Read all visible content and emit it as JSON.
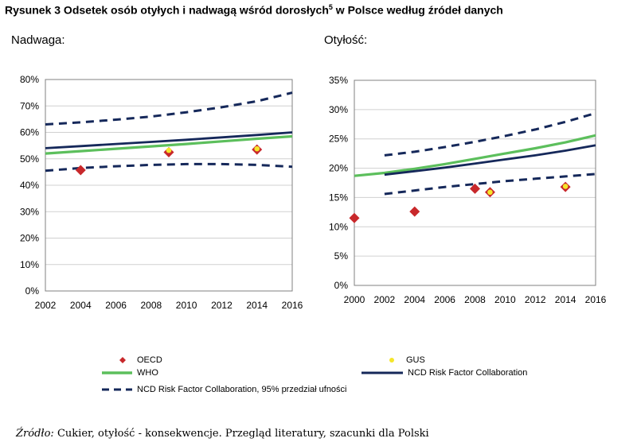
{
  "figure": {
    "title_main": "Rysunek 3 Odsetek osób otyłych  i nadwagą wśród dorosłych",
    "title_sup": "5",
    "title_tail": " w Polsce według źródeł danych",
    "source_label": "Źródło:",
    "source_text": " Cukier, otyłość - konsekwencje. Przegląd literatury, szacunki dla Polski"
  },
  "legend": {
    "oecd": "OECD",
    "gus": "GUS",
    "who": "WHO",
    "ncd": "NCD Risk Factor Collaboration",
    "ncd_ci": "NCD Risk Factor Collaboration, 95% przedział ufności"
  },
  "colors": {
    "oecd": "#c8282b",
    "gus": "#f5e62a",
    "who": "#5cbf5c",
    "ncd": "#15285a",
    "ncd_ci": "#15285a",
    "frame": "#808080",
    "grid": "#d0d0d0"
  },
  "chart_data": [
    {
      "type": "line",
      "title": "Nadwaga:",
      "ylim": [
        0,
        80
      ],
      "xlim": [
        2002,
        2016
      ],
      "yticks": [
        "0%",
        "10%",
        "20%",
        "30%",
        "40%",
        "50%",
        "60%",
        "70%",
        "80%"
      ],
      "xticks": [
        "2002",
        "2004",
        "2006",
        "2008",
        "2010",
        "2012",
        "2014",
        "2016"
      ],
      "grid": "horizontal",
      "series": [
        {
          "key": "ncd_ci_upper",
          "style": "dashed",
          "x": [
            2002,
            2004,
            2006,
            2008,
            2010,
            2012,
            2014,
            2016
          ],
          "y": [
            63,
            63.8,
            64.8,
            66,
            67.6,
            69.5,
            71.8,
            75
          ]
        },
        {
          "key": "ncd_ci_lower",
          "style": "dashed",
          "x": [
            2002,
            2004,
            2006,
            2008,
            2010,
            2012,
            2014,
            2016
          ],
          "y": [
            45.5,
            46.5,
            47.2,
            47.7,
            48,
            48,
            47.7,
            47
          ]
        },
        {
          "key": "ncd",
          "style": "solid",
          "x": [
            2002,
            2004,
            2006,
            2008,
            2010,
            2012,
            2014,
            2016
          ],
          "y": [
            54,
            54.8,
            55.6,
            56.4,
            57.2,
            58.1,
            59,
            60
          ]
        },
        {
          "key": "who",
          "style": "solid",
          "x": [
            2002,
            2004,
            2006,
            2008,
            2010,
            2012,
            2014,
            2016
          ],
          "y": [
            52,
            52.9,
            53.8,
            54.7,
            55.6,
            56.6,
            57.6,
            58.5
          ]
        },
        {
          "key": "oecd",
          "style": "marker",
          "x": [
            2004,
            2009,
            2014
          ],
          "y": [
            45.7,
            52.5,
            53.5
          ]
        },
        {
          "key": "gus",
          "style": "marker",
          "x": [
            2009,
            2014
          ],
          "y": [
            53.2,
            53.8
          ]
        }
      ]
    },
    {
      "type": "line",
      "title": "Otyłość:",
      "ylim": [
        0,
        35
      ],
      "xlim": [
        2000,
        2016
      ],
      "yticks": [
        "0%",
        "5%",
        "10%",
        "15%",
        "20%",
        "25%",
        "30%",
        "35%"
      ],
      "xticks": [
        "2000",
        "2002",
        "2004",
        "2006",
        "2008",
        "2010",
        "2012",
        "2014",
        "2016"
      ],
      "grid": "horizontal",
      "series": [
        {
          "key": "ncd_ci_upper",
          "style": "dashed",
          "x": [
            2002,
            2004,
            2006,
            2008,
            2010,
            2012,
            2014,
            2016
          ],
          "y": [
            22.2,
            22.8,
            23.6,
            24.5,
            25.5,
            26.6,
            27.9,
            29.4
          ]
        },
        {
          "key": "ncd_ci_lower",
          "style": "dashed",
          "x": [
            2002,
            2004,
            2006,
            2008,
            2010,
            2012,
            2014,
            2016
          ],
          "y": [
            15.6,
            16.2,
            16.8,
            17.3,
            17.8,
            18.2,
            18.6,
            19
          ]
        },
        {
          "key": "ncd",
          "style": "solid",
          "x": [
            2002,
            2004,
            2006,
            2008,
            2010,
            2012,
            2014,
            2016
          ],
          "y": [
            18.9,
            19.5,
            20.1,
            20.8,
            21.5,
            22.2,
            23,
            23.9
          ]
        },
        {
          "key": "who",
          "style": "solid",
          "x": [
            2000,
            2002,
            2004,
            2006,
            2008,
            2010,
            2012,
            2014,
            2016
          ],
          "y": [
            18.7,
            19.2,
            19.9,
            20.7,
            21.6,
            22.5,
            23.4,
            24.4,
            25.6
          ]
        },
        {
          "key": "oecd",
          "style": "marker",
          "x": [
            2000,
            2004,
            2008,
            2009,
            2014
          ],
          "y": [
            11.5,
            12.6,
            16.5,
            15.9,
            16.8
          ]
        },
        {
          "key": "gus",
          "style": "marker",
          "x": [
            2009,
            2014
          ],
          "y": [
            15.9,
            16.9
          ]
        }
      ]
    }
  ]
}
